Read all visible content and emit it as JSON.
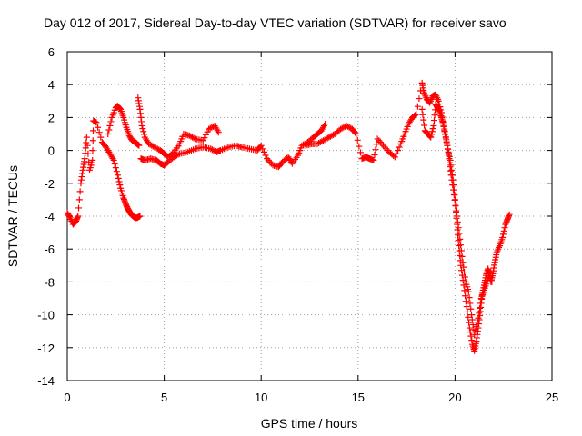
{
  "chart_data": {
    "type": "scatter",
    "title": "Day 012 of 2017, Sidereal Day-to-day VTEC variation (SDTVAR) for receiver savo",
    "xlabel": "GPS time / hours",
    "ylabel": "SDTVAR / TECUs",
    "xlim": [
      0,
      25
    ],
    "ylim": [
      -14,
      6
    ],
    "xticks": [
      0,
      5,
      10,
      15,
      20,
      25
    ],
    "yticks": [
      -14,
      -12,
      -10,
      -8,
      -6,
      -4,
      -2,
      0,
      2,
      4,
      6
    ],
    "grid": true,
    "marker": "+",
    "color": "#ff0000",
    "series": [
      {
        "name": "SDTVAR",
        "x": [
          0.0,
          0.15,
          0.3,
          0.45,
          0.55,
          0.7,
          0.8,
          0.9,
          1.0,
          1.15,
          1.3,
          1.35,
          1.5,
          1.8,
          2.0,
          2.2,
          2.4,
          2.6,
          2.75,
          2.9,
          3.0,
          3.1,
          3.2,
          3.3,
          3.4,
          3.5,
          3.6,
          3.75,
          2.1,
          2.3,
          2.5,
          2.6,
          2.75,
          2.9,
          3.05,
          3.2,
          3.35,
          3.5,
          3.6,
          3.7,
          3.65,
          3.75,
          3.85,
          4.0,
          4.2,
          4.5,
          4.8,
          5.0,
          5.2,
          5.5,
          5.8,
          6.0,
          6.3,
          6.6,
          7.0,
          7.3,
          7.6,
          7.8,
          3.8,
          4.0,
          4.3,
          4.6,
          4.8,
          5.0,
          5.2,
          5.5,
          5.8,
          6.2,
          6.6,
          7.0,
          7.4,
          7.7,
          7.9,
          8.3,
          8.7,
          9.0,
          9.4,
          9.8,
          10.0,
          10.3,
          10.6,
          10.9,
          11.1,
          11.4,
          11.6,
          11.9,
          12.1,
          12.4,
          12.7,
          12.9,
          13.1,
          13.3,
          12.3,
          12.6,
          12.9,
          13.2,
          13.5,
          13.8,
          14.1,
          14.4,
          14.7,
          14.9,
          15.2,
          15.4,
          15.6,
          15.8,
          16.0,
          16.3,
          16.6,
          16.9,
          17.2,
          17.4,
          17.6,
          17.8,
          18.0,
          18.3,
          18.4,
          18.55,
          18.7,
          18.85,
          19.0,
          19.15,
          19.3,
          19.45,
          19.6,
          19.75,
          19.9,
          20.0,
          20.1,
          20.2,
          20.3,
          20.45,
          20.6,
          20.75,
          20.9,
          21.0,
          21.1,
          21.2,
          21.3,
          21.4,
          21.5,
          21.6,
          21.7,
          21.75,
          21.85,
          21.95,
          22.05,
          22.15,
          22.3,
          22.45,
          22.6,
          22.7,
          22.8,
          18.3,
          18.45,
          18.6,
          18.75,
          18.9,
          19.0,
          19.1,
          19.2,
          19.3,
          19.4,
          19.5,
          19.6,
          19.7,
          19.8,
          19.95,
          20.1,
          20.25,
          20.4,
          20.55,
          20.7,
          20.85,
          21.0,
          21.2,
          21.35,
          21.5,
          21.65,
          21.8,
          21.9
        ],
        "y": [
          -3.8,
          -4.1,
          -4.5,
          -4.3,
          -4.0,
          -2.0,
          -1.2,
          -0.5,
          0.8,
          -1.2,
          -0.6,
          1.8,
          1.7,
          0.5,
          0.2,
          -0.2,
          -0.6,
          -1.5,
          -2.3,
          -2.9,
          -3.2,
          -3.5,
          -3.7,
          -3.9,
          -4.0,
          -4.1,
          -4.1,
          -4.0,
          1.0,
          2.0,
          2.6,
          2.7,
          2.5,
          2.0,
          1.4,
          0.9,
          0.6,
          0.5,
          0.4,
          0.3,
          3.2,
          2.5,
          1.5,
          0.8,
          0.4,
          0.2,
          0.0,
          -0.2,
          -0.4,
          -0.1,
          0.4,
          1.0,
          0.9,
          0.7,
          0.6,
          1.3,
          1.5,
          1.1,
          -0.5,
          -0.6,
          -0.5,
          -0.6,
          -0.8,
          -0.9,
          -0.7,
          -0.4,
          -0.2,
          -0.1,
          0.1,
          0.2,
          0.1,
          -0.1,
          0.0,
          0.2,
          0.3,
          0.2,
          0.1,
          0.0,
          0.3,
          -0.5,
          -0.9,
          -1.0,
          -0.7,
          -0.4,
          -0.8,
          -0.3,
          0.3,
          0.5,
          0.8,
          1.0,
          1.2,
          1.6,
          0.3,
          0.4,
          0.4,
          0.6,
          0.8,
          1.0,
          1.3,
          1.5,
          1.3,
          1.0,
          -0.5,
          -0.4,
          -0.5,
          -0.6,
          0.7,
          0.3,
          -0.1,
          -0.4,
          0.4,
          1.0,
          1.6,
          2.0,
          2.2,
          4.1,
          3.5,
          3.1,
          2.9,
          3.3,
          3.4,
          3.0,
          2.3,
          1.2,
          0.3,
          -0.6,
          -1.8,
          -3.0,
          -4.5,
          -5.8,
          -7.0,
          -8.2,
          -9.5,
          -10.8,
          -11.8,
          -12.2,
          -11.6,
          -10.8,
          -9.8,
          -8.8,
          -8.2,
          -7.6,
          -7.2,
          -7.5,
          -8.0,
          -7.5,
          -6.8,
          -6.2,
          -5.8,
          -5.3,
          -4.5,
          -4.2,
          -3.9,
          2.5,
          1.2,
          1.0,
          0.8,
          1.5,
          2.8,
          2.6,
          2.4,
          2.0,
          1.6,
          1.0,
          0.3,
          -0.5,
          -1.5,
          -2.7,
          -4.0,
          -5.4,
          -6.8,
          -8.0,
          -8.6,
          -10.0,
          -11.2,
          -10.2,
          -9.0,
          -8.5,
          -8.0,
          -7.5,
          -8.0
        ]
      }
    ]
  }
}
